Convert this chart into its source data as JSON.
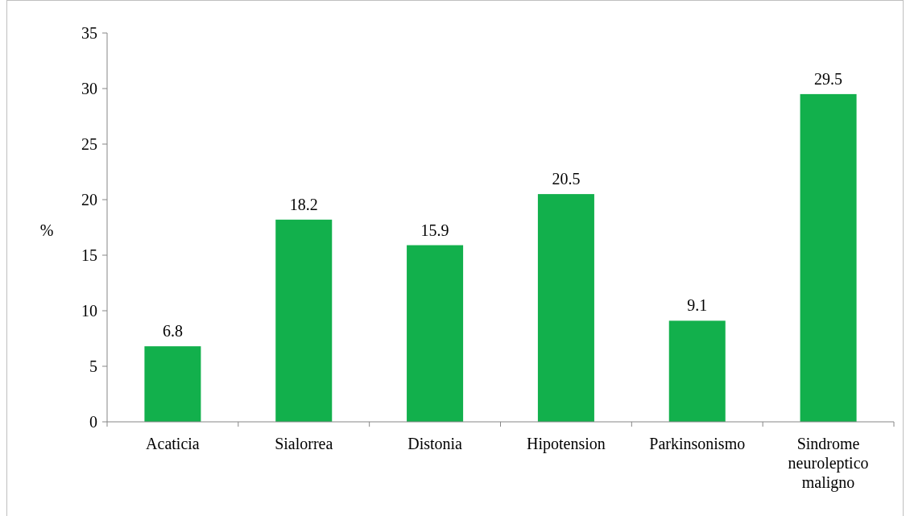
{
  "chart_data": {
    "type": "bar",
    "ylabel": "%",
    "categories": [
      "Acaticia",
      "Sialorrea",
      "Distonia",
      "Hipotension",
      "Parkinsonismo",
      "Sindrome neuroleptico maligno"
    ],
    "values": [
      6.8,
      18.2,
      15.9,
      20.5,
      9.1,
      29.5
    ],
    "color": "#12b04c",
    "ylim": [
      0,
      35
    ],
    "yticks": [
      0,
      5,
      10,
      15,
      20,
      25,
      30,
      35
    ],
    "grid": false,
    "data_labels": true
  }
}
